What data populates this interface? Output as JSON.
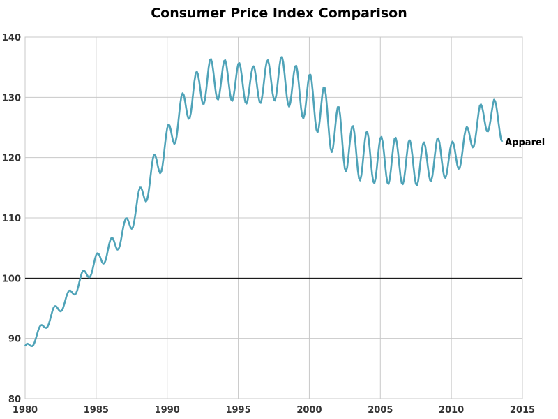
{
  "chart_data": {
    "type": "line",
    "title": "Consumer Price Index Comparison",
    "xlabel": "",
    "ylabel": "",
    "xlim": [
      1980,
      2015
    ],
    "ylim": [
      80,
      140
    ],
    "x_ticks": [
      1980,
      1985,
      1990,
      1995,
      2000,
      2005,
      2010,
      2015
    ],
    "y_ticks": [
      80,
      90,
      100,
      110,
      120,
      130,
      140
    ],
    "grid": true,
    "reference_line": {
      "y": 100,
      "color": "#000000"
    },
    "series": [
      {
        "name": "Apparel",
        "color": "#4fa3b8",
        "seasonal": true,
        "trend": [
          [
            1980.0,
            88.0
          ],
          [
            1981.0,
            91.0
          ],
          [
            1982.0,
            94.2
          ],
          [
            1983.0,
            96.6
          ],
          [
            1984.0,
            99.9
          ],
          [
            1985.0,
            102.6
          ],
          [
            1986.0,
            104.9
          ],
          [
            1987.0,
            107.7
          ],
          [
            1988.0,
            112.4
          ],
          [
            1989.0,
            117.5
          ],
          [
            1990.0,
            122.3
          ],
          [
            1991.0,
            127.5
          ],
          [
            1992.0,
            131.0
          ],
          [
            1993.0,
            133.0
          ],
          [
            1994.0,
            132.9
          ],
          [
            1995.0,
            132.5
          ],
          [
            1996.0,
            131.9
          ],
          [
            1997.0,
            132.7
          ],
          [
            1998.0,
            133.2
          ],
          [
            1999.0,
            131.5
          ],
          [
            2000.0,
            129.8
          ],
          [
            2001.0,
            127.5
          ],
          [
            2002.0,
            124.0
          ],
          [
            2003.0,
            120.9
          ],
          [
            2004.0,
            120.2
          ],
          [
            2005.0,
            119.5
          ],
          [
            2006.0,
            119.5
          ],
          [
            2007.0,
            119.2
          ],
          [
            2008.0,
            118.9
          ],
          [
            2009.0,
            120.0
          ],
          [
            2010.0,
            119.5
          ],
          [
            2011.0,
            122.1
          ],
          [
            2012.0,
            126.2
          ],
          [
            2013.0,
            127.3
          ],
          [
            2013.55,
            125.0
          ]
        ],
        "amplitude": [
          [
            1980.0,
            0.8
          ],
          [
            1984.0,
            1.1
          ],
          [
            1987.0,
            1.8
          ],
          [
            1989.0,
            2.6
          ],
          [
            1991.0,
            2.9
          ],
          [
            1993.0,
            3.4
          ],
          [
            1996.0,
            3.2
          ],
          [
            1999.0,
            3.9
          ],
          [
            2002.0,
            4.7
          ],
          [
            2005.0,
            4.0
          ],
          [
            2008.0,
            3.6
          ],
          [
            2010.0,
            3.0
          ],
          [
            2011.0,
            2.7
          ],
          [
            2013.55,
            2.4
          ]
        ]
      }
    ]
  }
}
